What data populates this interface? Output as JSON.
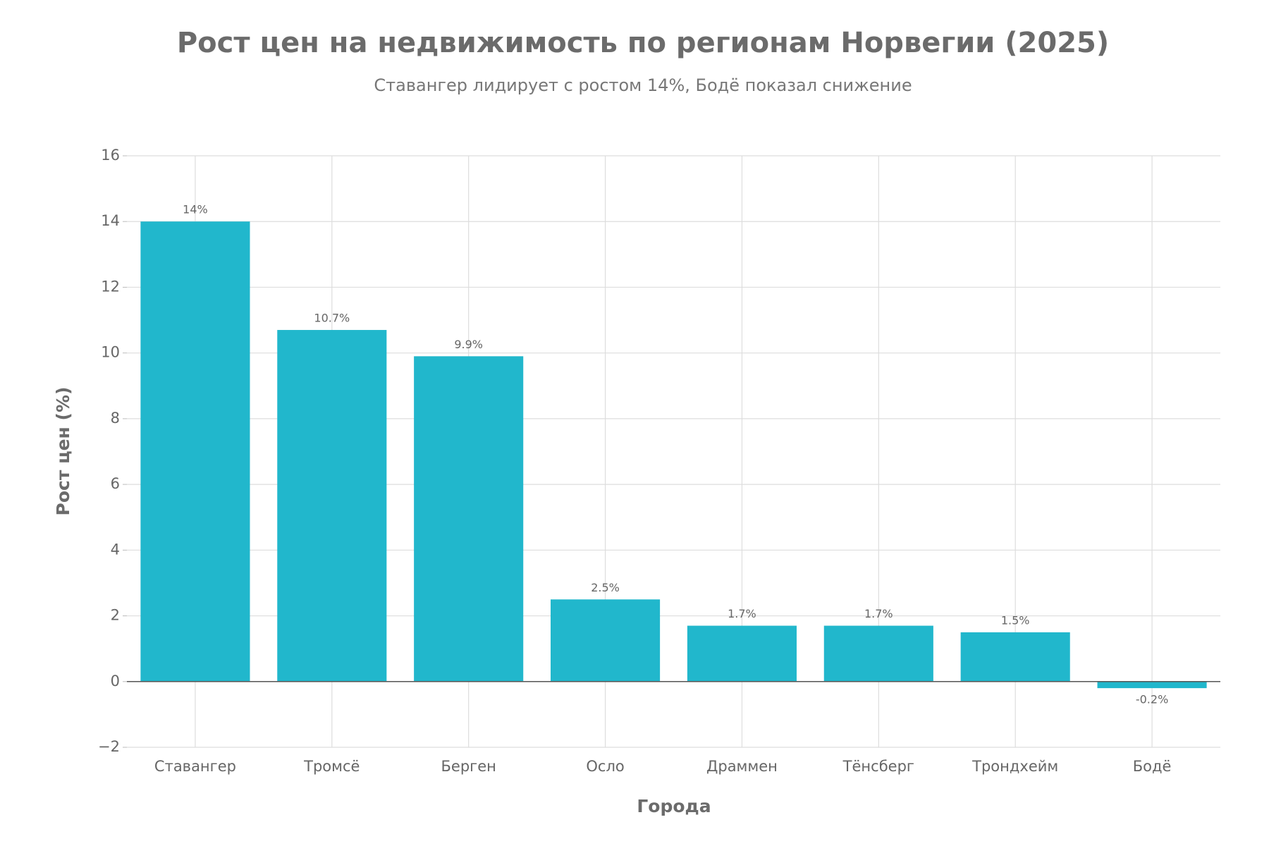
{
  "chart_data": {
    "type": "bar",
    "title": "Рост цен на недвижимость по регионам Норвегии (2025)",
    "subtitle": "Ставангер лидирует с ростом 14%, Бодё показал снижение",
    "x_label": "Города",
    "y_label": "Рост цен (%)",
    "categories": [
      "Ставангер",
      "Тромсё",
      "Берген",
      "Осло",
      "Драммен",
      "Тёнсберг",
      "Трондхейм",
      "Бодё"
    ],
    "values": [
      14,
      10.7,
      9.9,
      2.5,
      1.7,
      1.7,
      1.5,
      -0.2
    ],
    "value_labels": [
      "14%",
      "10.7%",
      "9.9%",
      "2.5%",
      "1.7%",
      "1.7%",
      "1.5%",
      "-0.2%"
    ],
    "color": "#21b7cc",
    "ylim": [
      -2,
      16
    ],
    "yticks": [
      {
        "value": -2,
        "label": "−2"
      },
      0,
      2,
      4,
      6,
      8,
      10,
      12,
      14,
      16
    ],
    "grid": true
  }
}
